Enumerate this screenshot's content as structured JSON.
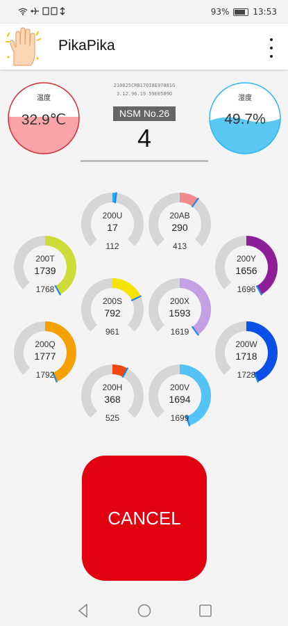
{
  "status_bar": {
    "left_icons": "wifi airplane sim sim usb",
    "battery": "93%",
    "time": "13:53"
  },
  "app": {
    "title": "PikaPika",
    "icon": "raised-hand-icon",
    "menu_icon": "more-vert-icon"
  },
  "temperature": {
    "label": "温度",
    "value": "32.9℃",
    "fill_fraction": 0.52,
    "fill_color": "#f8a4a8",
    "ring_color": "#d42a36"
  },
  "humidity": {
    "label": "湿度",
    "value": "49.7%",
    "fill_fraction": 0.5,
    "fill_color": "#5bc8f3",
    "ring_color": "#29b6f6"
  },
  "device": {
    "id_line1": "210825CRB17QI8E97881G",
    "id_line2": "3.12.96.19 59EE589O",
    "nsm_label": "NSM No.26",
    "nsm_number": "4"
  },
  "gauges": [
    {
      "name": "200U",
      "value": "17",
      "sub": "112",
      "fraction": 0.02,
      "color": "#29a8f0"
    },
    {
      "name": "20AB",
      "value": "290",
      "sub": "413",
      "fraction": 0.1,
      "color": "#f28c8c"
    },
    {
      "name": "200T",
      "value": "1739",
      "sub": "1768",
      "fraction": 0.42,
      "color": "#cddc39"
    },
    {
      "name": "200Y",
      "value": "1656",
      "sub": "1696",
      "fraction": 0.42,
      "color": "#8e1f99"
    },
    {
      "name": "200S",
      "value": "792",
      "sub": "961",
      "fraction": 0.18,
      "color": "#f5e300"
    },
    {
      "name": "200X",
      "value": "1593",
      "sub": "1619",
      "fraction": 0.4,
      "color": "#c3a0e3"
    },
    {
      "name": "200Q",
      "value": "1777",
      "sub": "1792",
      "fraction": 0.44,
      "color": "#f4a100"
    },
    {
      "name": "200W",
      "value": "1718",
      "sub": "1728",
      "fraction": 0.44,
      "color": "#0a50e6"
    },
    {
      "name": "200H",
      "value": "368",
      "sub": "525",
      "fraction": 0.08,
      "color": "#f04614"
    },
    {
      "name": "200V",
      "value": "1694",
      "sub": "1699",
      "fraction": 0.45,
      "color": "#54c3f5"
    }
  ],
  "gauge_track_color": "#d6d6d6",
  "gauge_needle_color": "#1e88e5",
  "cancel_button": {
    "label": "CANCEL",
    "color": "#e00010"
  },
  "nav_bar": {
    "back": "back-icon",
    "home": "home-icon",
    "recents": "recents-icon"
  }
}
